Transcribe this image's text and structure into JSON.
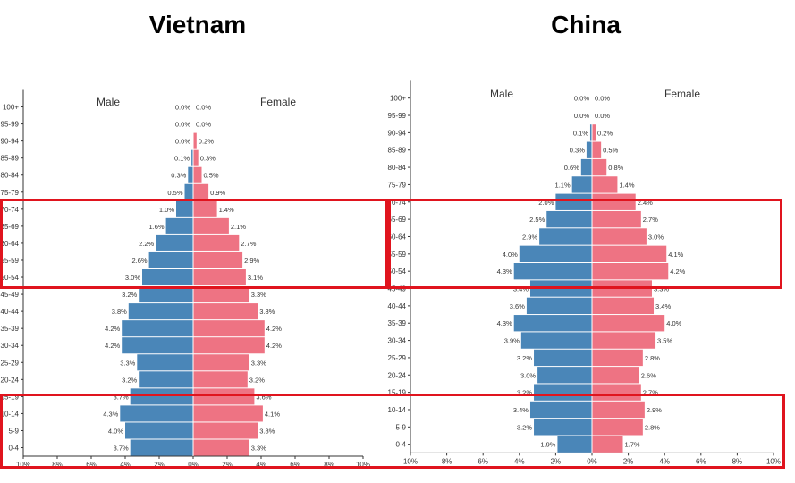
{
  "chart_data": [
    {
      "type": "bar",
      "title": "Vietnam",
      "male_label": "Male",
      "female_label": "Female",
      "categories": [
        "100+",
        "95-99",
        "90-94",
        "85-89",
        "80-84",
        "75-79",
        "70-74",
        "65-69",
        "60-64",
        "55-59",
        "50-54",
        "45-49",
        "40-44",
        "35-39",
        "30-34",
        "25-29",
        "20-24",
        "15-19",
        "10-14",
        "5-9",
        "0-4"
      ],
      "series": [
        {
          "name": "Male",
          "values": [
            0.0,
            0.0,
            0.0,
            0.1,
            0.3,
            0.5,
            1.0,
            1.6,
            2.2,
            2.6,
            3.0,
            3.2,
            3.8,
            4.2,
            4.2,
            3.3,
            3.2,
            3.7,
            4.3,
            4.0,
            3.7
          ],
          "color": "#4a86b8"
        },
        {
          "name": "Female",
          "values": [
            0.0,
            0.0,
            0.2,
            0.3,
            0.5,
            0.9,
            1.4,
            2.1,
            2.7,
            2.9,
            3.1,
            3.3,
            3.8,
            4.2,
            4.2,
            3.3,
            3.2,
            3.6,
            4.1,
            3.8,
            3.3
          ],
          "color": "#ee7383"
        }
      ],
      "male_labels": [
        "0.0%",
        "0.0%",
        "0.0%",
        "0.1%",
        "0.3%",
        "0.5%",
        "1.0%",
        "1.6%",
        "2.2%",
        "2.6%",
        "3.0%",
        "3.2%",
        "3.8%",
        "4.2%",
        "4.2%",
        "3.3%",
        "3.2%",
        "3.7%",
        "4.3%",
        "4.0%",
        "3.7%"
      ],
      "female_labels": [
        "0.0%",
        "0.0%",
        "0.2%",
        "0.3%",
        "0.5%",
        "0.9%",
        "1.4%",
        "2.1%",
        "2.7%",
        "2.9%",
        "3.1%",
        "3.3%",
        "3.8%",
        "4.2%",
        "4.2%",
        "3.3%",
        "3.2%",
        "3.6%",
        "4.1%",
        "3.8%",
        "3.3%"
      ],
      "xticks": [
        "10%",
        "8%",
        "6%",
        "4%",
        "2%",
        "0%",
        "2%",
        "4%",
        "6%",
        "8%",
        "10%"
      ],
      "xlim": [
        -10,
        10
      ]
    },
    {
      "type": "bar",
      "title": "China",
      "male_label": "Male",
      "female_label": "Female",
      "categories": [
        "100+",
        "95-99",
        "90-94",
        "85-89",
        "80-84",
        "75-79",
        "70-74",
        "65-69",
        "60-64",
        "55-59",
        "50-54",
        "45-49",
        "40-44",
        "35-39",
        "30-34",
        "25-29",
        "20-24",
        "15-19",
        "10-14",
        "5-9",
        "0-4"
      ],
      "series": [
        {
          "name": "Male",
          "values": [
            0.0,
            0.0,
            0.1,
            0.3,
            0.6,
            1.1,
            2.0,
            2.5,
            2.9,
            4.0,
            4.3,
            3.4,
            3.6,
            4.3,
            3.9,
            3.2,
            3.0,
            3.2,
            3.4,
            3.2,
            1.9
          ],
          "color": "#4a86b8"
        },
        {
          "name": "Female",
          "values": [
            0.0,
            0.0,
            0.2,
            0.5,
            0.8,
            1.4,
            2.4,
            2.7,
            3.0,
            4.1,
            4.2,
            3.3,
            3.4,
            4.0,
            3.5,
            2.8,
            2.6,
            2.7,
            2.9,
            2.8,
            1.7
          ],
          "color": "#ee7383"
        }
      ],
      "male_labels": [
        "0.0%",
        "0.0%",
        "0.1%",
        "0.3%",
        "0.6%",
        "1.1%",
        "2.0%",
        "2.5%",
        "2.9%",
        "4.0%",
        "4.3%",
        "3.4%",
        "3.6%",
        "4.3%",
        "3.9%",
        "3.2%",
        "3.0%",
        "3.2%",
        "3.4%",
        "3.2%",
        "1.9%"
      ],
      "female_labels": [
        "0.0%",
        "0.0%",
        "0.2%",
        "0.5%",
        "0.8%",
        "1.4%",
        "2.4%",
        "2.7%",
        "3.0%",
        "4.1%",
        "4.2%",
        "3.3%",
        "3.4%",
        "4.0%",
        "3.5%",
        "2.8%",
        "2.6%",
        "2.7%",
        "2.9%",
        "2.8%",
        "1.7%"
      ],
      "xticks": [
        "10%",
        "8%",
        "6%",
        "4%",
        "2%",
        "0%",
        "2%",
        "4%",
        "6%",
        "8%",
        "10%"
      ],
      "xlim": [
        -10,
        10
      ]
    }
  ],
  "highlights": {
    "color": "#e0141e",
    "upper_ages": [
      "50-54",
      "55-59",
      "60-64",
      "65-69",
      "70-74"
    ],
    "lower_ages": [
      "0-4",
      "5-9",
      "10-14"
    ]
  }
}
